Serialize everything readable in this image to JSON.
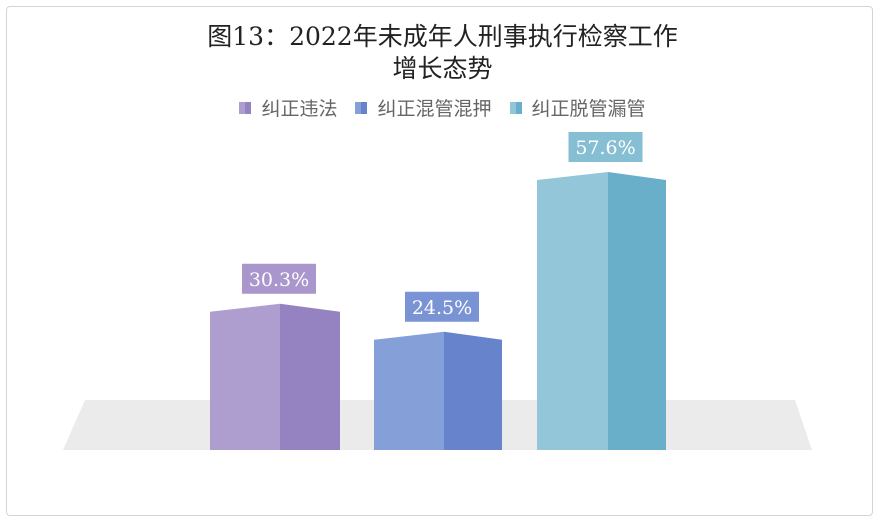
{
  "chart_data": {
    "type": "bar",
    "title": "图13：2022年未成年人刑事执行检察工作",
    "subtitle": "增长态势",
    "categories": [
      "纠正违法",
      "纠正混管混押",
      "纠正脱管漏管"
    ],
    "series": [
      {
        "name": "纠正违法",
        "value": 30.3,
        "label": "30.3%",
        "color_front": "#ae9dcf",
        "color_side": "#9583c1",
        "color_top": "#c5b9de",
        "color_label": "#a996cc"
      },
      {
        "name": "纠正混管混押",
        "value": 24.5,
        "label": "24.5%",
        "color_front": "#859fd9",
        "color_side": "#6783cb",
        "color_top": "#a5b8e4",
        "color_label": "#7a93d4"
      },
      {
        "name": "纠正脱管漏管",
        "value": 57.6,
        "label": "57.6%",
        "color_front": "#93c6d8",
        "color_side": "#6aafc9",
        "color_top": "#b0d8e5",
        "color_label": "#86bfd3"
      }
    ],
    "legend_position": "top",
    "ylim": [
      0,
      70
    ],
    "grid": false
  }
}
